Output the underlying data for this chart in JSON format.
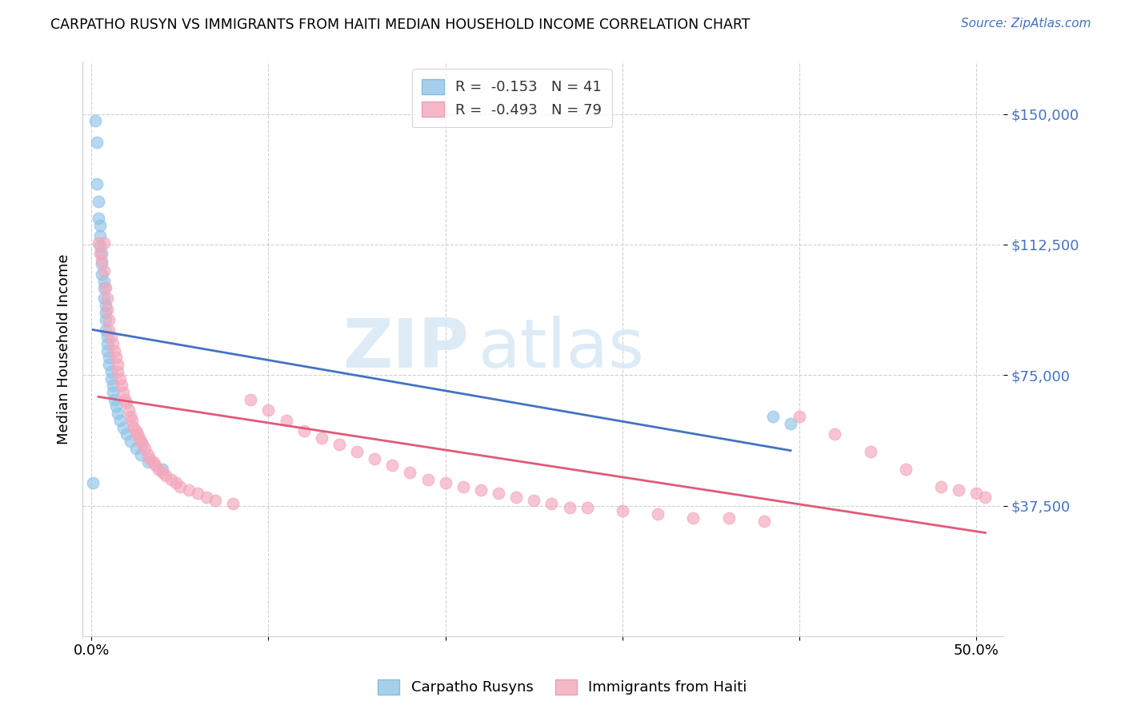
{
  "title": "CARPATHO RUSYN VS IMMIGRANTS FROM HAITI MEDIAN HOUSEHOLD INCOME CORRELATION CHART",
  "source": "Source: ZipAtlas.com",
  "ylabel": "Median Household Income",
  "ytick_labels": [
    "$37,500",
    "$75,000",
    "$112,500",
    "$150,000"
  ],
  "ytick_values": [
    37500,
    75000,
    112500,
    150000
  ],
  "ymin": 0,
  "ymax": 165000,
  "xmin": -0.005,
  "xmax": 0.515,
  "blue_R": -0.153,
  "blue_N": 41,
  "pink_R": -0.493,
  "pink_N": 79,
  "blue_color": "#90c4e8",
  "pink_color": "#f4a7bb",
  "blue_line_color": "#4472c4",
  "pink_line_color": "#e05a7a",
  "watermark_zip": "ZIP",
  "watermark_atlas": "atlas",
  "blue_x": [
    0.001,
    0.002,
    0.003,
    0.003,
    0.004,
    0.004,
    0.005,
    0.005,
    0.005,
    0.006,
    0.006,
    0.006,
    0.007,
    0.007,
    0.007,
    0.008,
    0.008,
    0.008,
    0.008,
    0.009,
    0.009,
    0.009,
    0.01,
    0.01,
    0.011,
    0.011,
    0.012,
    0.012,
    0.013,
    0.014,
    0.015,
    0.016,
    0.018,
    0.02,
    0.022,
    0.025,
    0.028,
    0.032,
    0.04,
    0.385,
    0.395
  ],
  "blue_y": [
    44000,
    148000,
    142000,
    130000,
    125000,
    120000,
    118000,
    115000,
    112000,
    110000,
    107000,
    104000,
    102000,
    100000,
    97000,
    95000,
    93000,
    91000,
    88000,
    86000,
    84000,
    82000,
    80000,
    78000,
    76000,
    74000,
    72000,
    70000,
    68000,
    66000,
    64000,
    62000,
    60000,
    58000,
    56000,
    54000,
    52000,
    50000,
    48000,
    63000,
    61000
  ],
  "pink_x": [
    0.004,
    0.005,
    0.006,
    0.007,
    0.007,
    0.008,
    0.009,
    0.009,
    0.01,
    0.01,
    0.011,
    0.012,
    0.013,
    0.014,
    0.015,
    0.015,
    0.016,
    0.017,
    0.018,
    0.019,
    0.02,
    0.021,
    0.022,
    0.023,
    0.024,
    0.025,
    0.026,
    0.027,
    0.028,
    0.029,
    0.03,
    0.032,
    0.033,
    0.035,
    0.036,
    0.038,
    0.04,
    0.042,
    0.045,
    0.048,
    0.05,
    0.055,
    0.06,
    0.065,
    0.07,
    0.08,
    0.09,
    0.1,
    0.11,
    0.12,
    0.13,
    0.14,
    0.15,
    0.16,
    0.17,
    0.18,
    0.19,
    0.2,
    0.21,
    0.22,
    0.23,
    0.24,
    0.25,
    0.26,
    0.27,
    0.28,
    0.3,
    0.32,
    0.34,
    0.36,
    0.38,
    0.4,
    0.42,
    0.44,
    0.46,
    0.48,
    0.49,
    0.5,
    0.505
  ],
  "pink_y": [
    113000,
    110000,
    108000,
    105000,
    113000,
    100000,
    97000,
    94000,
    91000,
    88000,
    86000,
    84000,
    82000,
    80000,
    78000,
    76000,
    74000,
    72000,
    70000,
    68000,
    67000,
    65000,
    63000,
    62000,
    60000,
    59000,
    58000,
    57000,
    56000,
    55000,
    54000,
    52000,
    51000,
    50000,
    49000,
    48000,
    47000,
    46000,
    45000,
    44000,
    43000,
    42000,
    41000,
    40000,
    39000,
    38000,
    68000,
    65000,
    62000,
    59000,
    57000,
    55000,
    53000,
    51000,
    49000,
    47000,
    45000,
    44000,
    43000,
    42000,
    41000,
    40000,
    39000,
    38000,
    37000,
    37000,
    36000,
    35000,
    34000,
    34000,
    33000,
    63000,
    58000,
    53000,
    48000,
    43000,
    42000,
    41000,
    40000
  ]
}
